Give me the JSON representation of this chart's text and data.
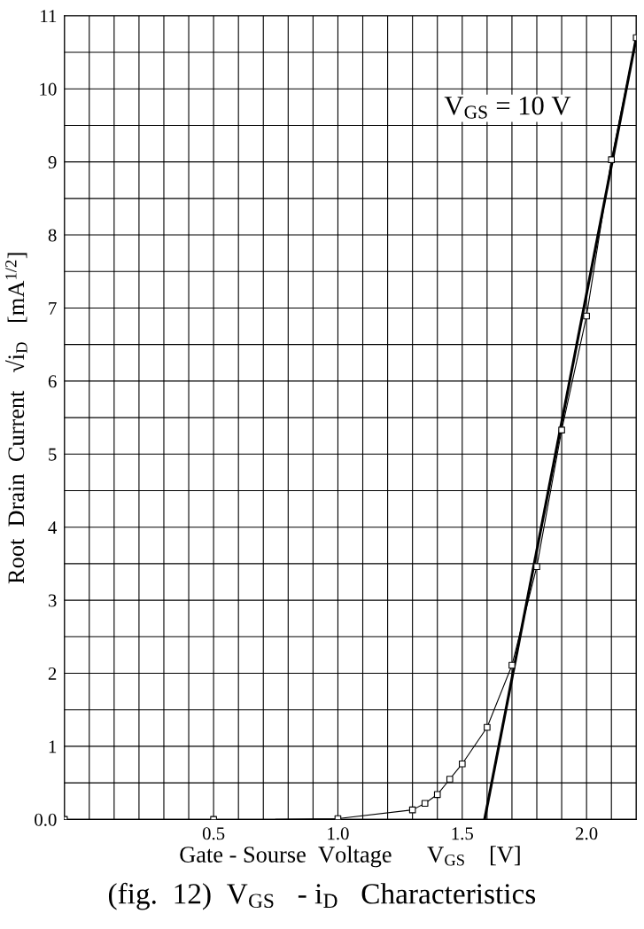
{
  "chart_data": {
    "type": "scatter",
    "title": "(fig.  12)  V$_{GS}$   - i$_{D}$   Characteristics",
    "xlabel": "Gate - Sourse  Voltage      V$_{GS}$    [V]",
    "ylabel": "Root  Drain  Current   √i$_{D}$   [mA$^{1/2}$]",
    "annotations": [
      "V$_{GS}$ = 10 V"
    ],
    "series": [
      {
        "color": "#000000",
        "marker": "square",
        "x": [
          -0.1,
          0.5,
          1.0,
          1.3,
          1.35,
          1.4,
          1.45,
          1.5,
          1.6,
          1.7,
          1.8,
          1.9,
          2.0,
          2.1,
          2.2
        ],
        "values": [
          0.0,
          0.0,
          0.01,
          0.13,
          0.22,
          0.34,
          0.55,
          0.76,
          1.26,
          2.11,
          3.46,
          5.33,
          6.89,
          9.03,
          10.7
        ]
      },
      {
        "type": "line",
        "color": "#000000",
        "line_style": "solid",
        "x": [
          0.75,
          1.0,
          1.3,
          1.35,
          1.4,
          1.45,
          1.5,
          1.6,
          1.7,
          1.8,
          1.9,
          2.0,
          2.1,
          2.2
        ],
        "values": [
          0.0,
          0.01,
          0.13,
          0.22,
          0.34,
          0.55,
          0.76,
          1.26,
          2.11,
          3.46,
          5.33,
          6.89,
          9.03,
          10.7
        ]
      },
      {
        "type": "line",
        "color": "#000000",
        "line_style": "solid",
        "x": [
          1.59,
          2.2
        ],
        "values": [
          0.0,
          10.7
        ]
      }
    ],
    "xlim": [
      -0.1,
      2.2
    ],
    "xticks": [
      {
        "value": -0.1,
        "label": null
      },
      {
        "value": 0.0,
        "label": null
      },
      {
        "value": 0.1,
        "label": null
      },
      {
        "value": 0.2,
        "label": null
      },
      {
        "value": 0.3,
        "label": null
      },
      {
        "value": 0.4,
        "label": null
      },
      {
        "value": 0.5,
        "label": "0.5"
      },
      {
        "value": 0.6,
        "label": null
      },
      {
        "value": 0.7,
        "label": null
      },
      {
        "value": 0.8,
        "label": null
      },
      {
        "value": 0.9,
        "label": null
      },
      {
        "value": 1.0,
        "label": "1.0"
      },
      {
        "value": 1.1,
        "label": null
      },
      {
        "value": 1.2,
        "label": null
      },
      {
        "value": 1.3,
        "label": null
      },
      {
        "value": 1.4,
        "label": null
      },
      {
        "value": 1.5,
        "label": "1.5"
      },
      {
        "value": 1.6,
        "label": null
      },
      {
        "value": 1.7,
        "label": null
      },
      {
        "value": 1.8,
        "label": null
      },
      {
        "value": 1.9,
        "label": null
      },
      {
        "value": 2.0,
        "label": "2.0"
      },
      {
        "value": 2.1,
        "label": null
      },
      {
        "value": 2.2,
        "label": null
      }
    ],
    "ylim": [
      0,
      11
    ],
    "yticks": [
      {
        "value": 0,
        "label": "0.0"
      },
      {
        "value": 0.5,
        "label": null
      },
      1,
      {
        "value": 1.5,
        "label": null
      },
      2,
      {
        "value": 2.5,
        "label": null
      },
      3,
      {
        "value": 3.5,
        "label": null
      },
      4,
      {
        "value": 4.5,
        "label": null
      },
      5,
      {
        "value": 5.5,
        "label": null
      },
      6,
      {
        "value": 6.5,
        "label": null
      },
      7,
      {
        "value": 7.5,
        "label": null
      },
      8,
      {
        "value": 8.5,
        "label": null
      },
      9,
      {
        "value": 9.5,
        "label": null
      },
      10,
      {
        "value": 10.5,
        "label": null
      },
      11
    ],
    "grid": true,
    "legend": false
  }
}
